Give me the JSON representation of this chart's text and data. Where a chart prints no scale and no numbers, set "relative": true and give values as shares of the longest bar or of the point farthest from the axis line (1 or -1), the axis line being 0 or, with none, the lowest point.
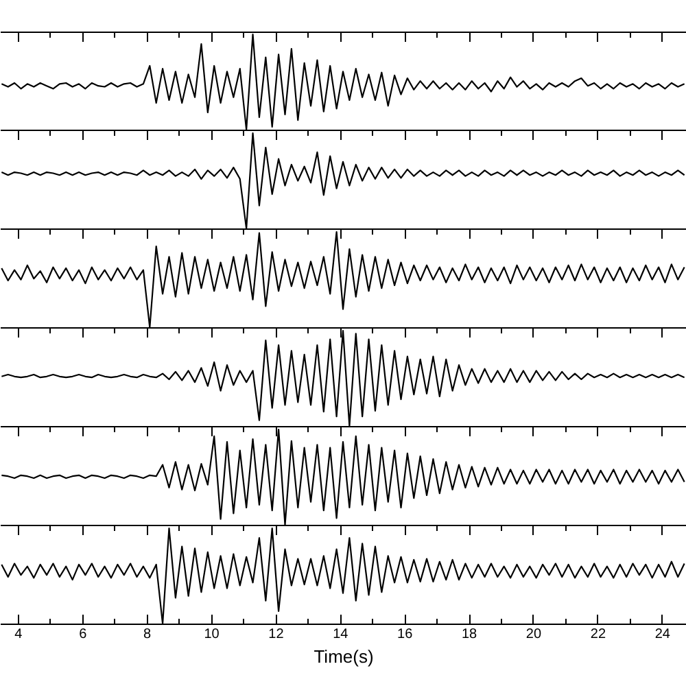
{
  "chart_data": [
    {
      "type": "line",
      "relative": true,
      "tick_labels": false,
      "color": "#000000",
      "xlim": [
        3.45,
        24.75
      ],
      "xticks": [
        4,
        {
          "value": 5,
          "label": null
        },
        6,
        {
          "value": 7,
          "label": null
        },
        8,
        {
          "value": 9,
          "label": null
        },
        10,
        {
          "value": 11,
          "label": null
        },
        12,
        {
          "value": 13,
          "label": null
        },
        14,
        {
          "value": 15,
          "label": null
        },
        16,
        {
          "value": 17,
          "label": null
        },
        18,
        {
          "value": 19,
          "label": null
        },
        20,
        {
          "value": 21,
          "label": null
        },
        22,
        {
          "value": 23,
          "label": null
        },
        24
      ],
      "x": [
        3.5,
        3.7,
        3.9,
        4.1,
        4.3,
        4.5,
        4.7,
        4.9,
        5.1,
        5.3,
        5.5,
        5.7,
        5.9,
        6.1,
        6.3,
        6.5,
        6.7,
        6.9,
        7.1,
        7.3,
        7.5,
        7.7,
        7.9,
        8.1,
        8.3,
        8.5,
        8.7,
        8.9,
        9.1,
        9.3,
        9.5,
        9.7,
        9.9,
        10.1,
        10.3,
        10.5,
        10.7,
        10.9,
        11.1,
        11.3,
        11.5,
        11.7,
        11.9,
        12.1,
        12.3,
        12.5,
        12.7,
        12.9,
        13.1,
        13.3,
        13.5,
        13.7,
        13.9,
        14.1,
        14.3,
        14.5,
        14.7,
        14.9,
        15.1,
        15.3,
        15.5,
        15.7,
        15.9,
        16.1,
        16.3,
        16.5,
        16.7,
        16.9,
        17.1,
        17.3,
        17.5,
        17.7,
        17.9,
        18.1,
        18.3,
        18.5,
        18.7,
        18.9,
        19.1,
        19.3,
        19.5,
        19.7,
        19.9,
        20.1,
        20.3,
        20.5,
        20.7,
        20.9,
        21.1,
        21.3,
        21.5,
        21.7,
        21.9,
        22.1,
        22.3,
        22.5,
        22.7,
        22.9,
        23.1,
        23.3,
        23.5,
        23.7,
        23.9,
        24.1,
        24.3,
        24.5,
        24.7
      ],
      "values": [
        0.48,
        0.45,
        0.49,
        0.43,
        0.48,
        0.45,
        0.49,
        0.46,
        0.43,
        0.48,
        0.49,
        0.45,
        0.48,
        0.43,
        0.49,
        0.46,
        0.45,
        0.49,
        0.45,
        0.48,
        0.49,
        0.45,
        0.48,
        0.67,
        0.28,
        0.64,
        0.31,
        0.61,
        0.28,
        0.58,
        0.34,
        0.9,
        0.18,
        0.67,
        0.28,
        0.61,
        0.34,
        0.64,
        0,
        1,
        0.13,
        0.76,
        0.03,
        0.79,
        0.16,
        0.85,
        0.1,
        0.7,
        0.25,
        0.73,
        0.19,
        0.67,
        0.22,
        0.61,
        0.31,
        0.64,
        0.34,
        0.58,
        0.31,
        0.6,
        0.25,
        0.57,
        0.37,
        0.54,
        0.42,
        0.51,
        0.43,
        0.51,
        0.43,
        0.49,
        0.42,
        0.49,
        0.42,
        0.51,
        0.43,
        0.49,
        0.4,
        0.51,
        0.43,
        0.55,
        0.45,
        0.51,
        0.43,
        0.48,
        0.42,
        0.49,
        0.45,
        0.49,
        0.45,
        0.51,
        0.54,
        0.46,
        0.49,
        0.43,
        0.48,
        0.43,
        0.49,
        0.45,
        0.48,
        0.43,
        0.49,
        0.45,
        0.48,
        0.43,
        0.49,
        0.45,
        0.48
      ]
    },
    {
      "type": "line",
      "relative": true,
      "tick_labels": false,
      "color": "#000000",
      "xlim": [
        3.45,
        24.75
      ],
      "xticks": [
        4,
        {
          "value": 5,
          "label": null
        },
        6,
        {
          "value": 7,
          "label": null
        },
        8,
        {
          "value": 9,
          "label": null
        },
        10,
        {
          "value": 11,
          "label": null
        },
        12,
        {
          "value": 13,
          "label": null
        },
        14,
        {
          "value": 15,
          "label": null
        },
        16,
        {
          "value": 17,
          "label": null
        },
        18,
        {
          "value": 19,
          "label": null
        },
        20,
        {
          "value": 21,
          "label": null
        },
        22,
        {
          "value": 23,
          "label": null
        },
        24
      ],
      "x": [
        3.5,
        3.7,
        3.9,
        4.1,
        4.3,
        4.5,
        4.7,
        4.9,
        5.1,
        5.3,
        5.5,
        5.7,
        5.9,
        6.1,
        6.3,
        6.5,
        6.7,
        6.9,
        7.1,
        7.3,
        7.5,
        7.7,
        7.9,
        8.1,
        8.3,
        8.5,
        8.7,
        8.9,
        9.1,
        9.3,
        9.5,
        9.7,
        9.9,
        10.1,
        10.3,
        10.5,
        10.7,
        10.9,
        11.1,
        11.3,
        11.5,
        11.7,
        11.9,
        12.1,
        12.3,
        12.5,
        12.7,
        12.9,
        13.1,
        13.3,
        13.5,
        13.7,
        13.9,
        14.1,
        14.3,
        14.5,
        14.7,
        14.9,
        15.1,
        15.3,
        15.5,
        15.7,
        15.9,
        16.1,
        16.3,
        16.5,
        16.7,
        16.9,
        17.1,
        17.3,
        17.5,
        17.7,
        17.9,
        18.1,
        18.3,
        18.5,
        18.7,
        18.9,
        19.1,
        19.3,
        19.5,
        19.7,
        19.9,
        20.1,
        20.3,
        20.5,
        20.7,
        20.9,
        21.1,
        21.3,
        21.5,
        21.7,
        21.9,
        22.1,
        22.3,
        22.5,
        22.7,
        22.9,
        23.1,
        23.3,
        23.5,
        23.7,
        23.9,
        24.1,
        24.3,
        24.5,
        24.7
      ],
      "values": [
        0.59,
        0.56,
        0.59,
        0.58,
        0.56,
        0.59,
        0.56,
        0.59,
        0.58,
        0.56,
        0.59,
        0.56,
        0.59,
        0.56,
        0.58,
        0.59,
        0.56,
        0.59,
        0.56,
        0.59,
        0.58,
        0.56,
        0.61,
        0.56,
        0.59,
        0.56,
        0.61,
        0.55,
        0.59,
        0.55,
        0.62,
        0.52,
        0.61,
        0.55,
        0.62,
        0.53,
        0.64,
        0.52,
        0,
        1,
        0.24,
        0.85,
        0.36,
        0.73,
        0.45,
        0.67,
        0.5,
        0.65,
        0.48,
        0.8,
        0.35,
        0.76,
        0.42,
        0.7,
        0.45,
        0.67,
        0.5,
        0.64,
        0.52,
        0.64,
        0.53,
        0.62,
        0.53,
        0.62,
        0.55,
        0.61,
        0.55,
        0.59,
        0.55,
        0.61,
        0.56,
        0.61,
        0.55,
        0.59,
        0.55,
        0.61,
        0.56,
        0.59,
        0.55,
        0.61,
        0.56,
        0.61,
        0.56,
        0.59,
        0.55,
        0.59,
        0.56,
        0.61,
        0.56,
        0.59,
        0.55,
        0.61,
        0.56,
        0.59,
        0.56,
        0.61,
        0.55,
        0.59,
        0.56,
        0.61,
        0.56,
        0.59,
        0.55,
        0.59,
        0.56,
        0.61,
        0.56
      ]
    },
    {
      "type": "line",
      "relative": true,
      "tick_labels": false,
      "color": "#000000",
      "xlim": [
        3.45,
        24.75
      ],
      "xticks": [
        4,
        {
          "value": 5,
          "label": null
        },
        6,
        {
          "value": 7,
          "label": null
        },
        8,
        {
          "value": 9,
          "label": null
        },
        10,
        {
          "value": 11,
          "label": null
        },
        12,
        {
          "value": 13,
          "label": null
        },
        14,
        {
          "value": 15,
          "label": null
        },
        16,
        {
          "value": 17,
          "label": null
        },
        18,
        {
          "value": 19,
          "label": null
        },
        20,
        {
          "value": 21,
          "label": null
        },
        22,
        {
          "value": 23,
          "label": null
        },
        24
      ],
      "x": [
        3.5,
        3.7,
        3.9,
        4.1,
        4.3,
        4.5,
        4.7,
        4.9,
        5.1,
        5.3,
        5.5,
        5.7,
        5.9,
        6.1,
        6.3,
        6.5,
        6.7,
        6.9,
        7.1,
        7.3,
        7.5,
        7.7,
        7.9,
        8.1,
        8.3,
        8.5,
        8.7,
        8.9,
        9.1,
        9.3,
        9.5,
        9.7,
        9.9,
        10.1,
        10.3,
        10.5,
        10.7,
        10.9,
        11.1,
        11.3,
        11.5,
        11.7,
        11.9,
        12.1,
        12.3,
        12.5,
        12.7,
        12.9,
        13.1,
        13.3,
        13.5,
        13.7,
        13.9,
        14.1,
        14.3,
        14.5,
        14.7,
        14.9,
        15.1,
        15.3,
        15.5,
        15.7,
        15.9,
        16.1,
        16.3,
        16.5,
        16.7,
        16.9,
        17.1,
        17.3,
        17.5,
        17.7,
        17.9,
        18.1,
        18.3,
        18.5,
        18.7,
        18.9,
        19.1,
        19.3,
        19.5,
        19.7,
        19.9,
        20.1,
        20.3,
        20.5,
        20.7,
        20.9,
        21.1,
        21.3,
        21.5,
        21.7,
        21.9,
        22.1,
        22.3,
        22.5,
        22.7,
        22.9,
        23.1,
        23.3,
        23.5,
        23.7,
        23.9,
        24.1,
        24.3,
        24.5,
        24.7
      ],
      "values": [
        0.62,
        0.49,
        0.6,
        0.5,
        0.65,
        0.51,
        0.59,
        0.47,
        0.63,
        0.51,
        0.62,
        0.49,
        0.6,
        0.46,
        0.63,
        0.5,
        0.6,
        0.49,
        0.62,
        0.51,
        0.63,
        0.5,
        0.6,
        0,
        0.85,
        0.35,
        0.74,
        0.32,
        0.78,
        0.35,
        0.74,
        0.41,
        0.71,
        0.38,
        0.68,
        0.41,
        0.74,
        0.38,
        0.76,
        0.29,
        0.99,
        0.22,
        0.79,
        0.38,
        0.71,
        0.43,
        0.68,
        0.41,
        0.69,
        0.44,
        0.74,
        0.35,
        1,
        0.19,
        0.82,
        0.32,
        0.76,
        0.38,
        0.74,
        0.41,
        0.71,
        0.44,
        0.68,
        0.46,
        0.65,
        0.49,
        0.65,
        0.5,
        0.63,
        0.47,
        0.62,
        0.49,
        0.66,
        0.5,
        0.63,
        0.47,
        0.62,
        0.49,
        0.63,
        0.46,
        0.65,
        0.5,
        0.63,
        0.49,
        0.62,
        0.47,
        0.63,
        0.5,
        0.65,
        0.49,
        0.66,
        0.5,
        0.63,
        0.47,
        0.62,
        0.49,
        0.63,
        0.47,
        0.62,
        0.49,
        0.65,
        0.5,
        0.63,
        0.47,
        0.66,
        0.5,
        0.63
      ]
    },
    {
      "type": "line",
      "relative": true,
      "tick_labels": false,
      "color": "#000000",
      "xlim": [
        3.45,
        24.75
      ],
      "xticks": [
        4,
        {
          "value": 5,
          "label": null
        },
        6,
        {
          "value": 7,
          "label": null
        },
        8,
        {
          "value": 9,
          "label": null
        },
        10,
        {
          "value": 11,
          "label": null
        },
        12,
        {
          "value": 13,
          "label": null
        },
        14,
        {
          "value": 15,
          "label": null
        },
        16,
        {
          "value": 17,
          "label": null
        },
        18,
        {
          "value": 19,
          "label": null
        },
        20,
        {
          "value": 21,
          "label": null
        },
        22,
        {
          "value": 23,
          "label": null
        },
        24
      ],
      "x": [
        3.5,
        3.7,
        3.9,
        4.1,
        4.3,
        4.5,
        4.7,
        4.9,
        5.1,
        5.3,
        5.5,
        5.7,
        5.9,
        6.1,
        6.3,
        6.5,
        6.7,
        6.9,
        7.1,
        7.3,
        7.5,
        7.7,
        7.9,
        8.1,
        8.3,
        8.5,
        8.7,
        8.9,
        9.1,
        9.3,
        9.5,
        9.7,
        9.9,
        10.1,
        10.3,
        10.5,
        10.7,
        10.9,
        11.1,
        11.3,
        11.5,
        11.7,
        11.9,
        12.1,
        12.3,
        12.5,
        12.7,
        12.9,
        13.1,
        13.3,
        13.5,
        13.7,
        13.9,
        14.1,
        14.3,
        14.5,
        14.7,
        14.9,
        15.1,
        15.3,
        15.5,
        15.7,
        15.9,
        16.1,
        16.3,
        16.5,
        16.7,
        16.9,
        17.1,
        17.3,
        17.5,
        17.7,
        17.9,
        18.1,
        18.3,
        18.5,
        18.7,
        18.9,
        19.1,
        19.3,
        19.5,
        19.7,
        19.9,
        20.1,
        20.3,
        20.5,
        20.7,
        20.9,
        21.1,
        21.3,
        21.5,
        21.7,
        21.9,
        22.1,
        22.3,
        22.5,
        22.7,
        22.9,
        23.1,
        23.3,
        23.5,
        23.7,
        23.9,
        24.1,
        24.3,
        24.5,
        24.7
      ],
      "values": [
        0.52,
        0.54,
        0.52,
        0.51,
        0.52,
        0.54,
        0.51,
        0.52,
        0.54,
        0.52,
        0.51,
        0.52,
        0.54,
        0.52,
        0.51,
        0.54,
        0.52,
        0.51,
        0.52,
        0.54,
        0.52,
        0.51,
        0.54,
        0.52,
        0.51,
        0.55,
        0.49,
        0.57,
        0.48,
        0.58,
        0.46,
        0.61,
        0.42,
        0.67,
        0.37,
        0.64,
        0.43,
        0.58,
        0.46,
        0.58,
        0.06,
        0.9,
        0.19,
        0.85,
        0.22,
        0.79,
        0.25,
        0.75,
        0.22,
        0.85,
        0.15,
        0.91,
        0.1,
        1,
        0,
        0.97,
        0.1,
        0.91,
        0.16,
        0.85,
        0.22,
        0.79,
        0.28,
        0.73,
        0.33,
        0.7,
        0.34,
        0.73,
        0.31,
        0.7,
        0.37,
        0.64,
        0.43,
        0.6,
        0.45,
        0.6,
        0.46,
        0.58,
        0.46,
        0.6,
        0.46,
        0.58,
        0.46,
        0.58,
        0.48,
        0.57,
        0.48,
        0.57,
        0.49,
        0.55,
        0.49,
        0.55,
        0.51,
        0.54,
        0.51,
        0.55,
        0.51,
        0.54,
        0.51,
        0.54,
        0.51,
        0.54,
        0.51,
        0.54,
        0.51,
        0.54,
        0.51
      ]
    },
    {
      "type": "line",
      "relative": true,
      "tick_labels": false,
      "color": "#000000",
      "xlim": [
        3.45,
        24.75
      ],
      "xticks": [
        4,
        {
          "value": 5,
          "label": null
        },
        6,
        {
          "value": 7,
          "label": null
        },
        8,
        {
          "value": 9,
          "label": null
        },
        10,
        {
          "value": 11,
          "label": null
        },
        12,
        {
          "value": 13,
          "label": null
        },
        14,
        {
          "value": 15,
          "label": null
        },
        16,
        {
          "value": 17,
          "label": null
        },
        18,
        {
          "value": 19,
          "label": null
        },
        20,
        {
          "value": 21,
          "label": null
        },
        22,
        {
          "value": 23,
          "label": null
        },
        24
      ],
      "x": [
        3.5,
        3.7,
        3.9,
        4.1,
        4.3,
        4.5,
        4.7,
        4.9,
        5.1,
        5.3,
        5.5,
        5.7,
        5.9,
        6.1,
        6.3,
        6.5,
        6.7,
        6.9,
        7.1,
        7.3,
        7.5,
        7.7,
        7.9,
        8.1,
        8.3,
        8.5,
        8.7,
        8.9,
        9.1,
        9.3,
        9.5,
        9.7,
        9.9,
        10.1,
        10.3,
        10.5,
        10.7,
        10.9,
        11.1,
        11.3,
        11.5,
        11.7,
        11.9,
        12.1,
        12.3,
        12.5,
        12.7,
        12.9,
        13.1,
        13.3,
        13.5,
        13.7,
        13.9,
        14.1,
        14.3,
        14.5,
        14.7,
        14.9,
        15.1,
        15.3,
        15.5,
        15.7,
        15.9,
        16.1,
        16.3,
        16.5,
        16.7,
        16.9,
        17.1,
        17.3,
        17.5,
        17.7,
        17.9,
        18.1,
        18.3,
        18.5,
        18.7,
        18.9,
        19.1,
        19.3,
        19.5,
        19.7,
        19.9,
        20.1,
        20.3,
        20.5,
        20.7,
        20.9,
        21.1,
        21.3,
        21.5,
        21.7,
        21.9,
        22.1,
        22.3,
        22.5,
        22.7,
        22.9,
        23.1,
        23.3,
        23.5,
        23.7,
        23.9,
        24.1,
        24.3,
        24.5,
        24.7
      ],
      "values": [
        0.52,
        0.51,
        0.49,
        0.52,
        0.51,
        0.49,
        0.52,
        0.49,
        0.51,
        0.52,
        0.49,
        0.51,
        0.52,
        0.49,
        0.52,
        0.51,
        0.49,
        0.52,
        0.51,
        0.49,
        0.52,
        0.51,
        0.49,
        0.52,
        0.51,
        0.63,
        0.39,
        0.66,
        0.37,
        0.63,
        0.36,
        0.64,
        0.42,
        0.93,
        0.06,
        0.87,
        0.12,
        0.78,
        0.18,
        0.9,
        0.21,
        0.84,
        0.15,
        1,
        0,
        0.88,
        0.18,
        0.81,
        0.24,
        0.84,
        0.15,
        0.81,
        0.07,
        0.87,
        0.18,
        0.93,
        0.21,
        0.84,
        0.15,
        0.81,
        0.24,
        0.78,
        0.18,
        0.75,
        0.28,
        0.72,
        0.31,
        0.69,
        0.33,
        0.66,
        0.37,
        0.63,
        0.39,
        0.61,
        0.4,
        0.6,
        0.42,
        0.6,
        0.43,
        0.58,
        0.43,
        0.57,
        0.43,
        0.58,
        0.45,
        0.58,
        0.43,
        0.57,
        0.43,
        0.58,
        0.45,
        0.58,
        0.43,
        0.57,
        0.45,
        0.58,
        0.43,
        0.57,
        0.45,
        0.58,
        0.45,
        0.57,
        0.43,
        0.57,
        0.45,
        0.58,
        0.45
      ]
    },
    {
      "type": "line",
      "relative": true,
      "tick_labels": "x",
      "color": "#000000",
      "xlim": [
        3.45,
        24.75
      ],
      "xlabel": "Time(s)",
      "xticks": [
        4,
        {
          "value": 5,
          "label": null
        },
        6,
        {
          "value": 7,
          "label": null
        },
        8,
        {
          "value": 9,
          "label": null
        },
        10,
        {
          "value": 11,
          "label": null
        },
        12,
        {
          "value": 13,
          "label": null
        },
        14,
        {
          "value": 15,
          "label": null
        },
        16,
        {
          "value": 17,
          "label": null
        },
        18,
        {
          "value": 19,
          "label": null
        },
        20,
        {
          "value": 21,
          "label": null
        },
        22,
        {
          "value": 23,
          "label": null
        },
        24
      ],
      "x": [
        3.5,
        3.7,
        3.9,
        4.1,
        4.3,
        4.5,
        4.7,
        4.9,
        5.1,
        5.3,
        5.5,
        5.7,
        5.9,
        6.1,
        6.3,
        6.5,
        6.7,
        6.9,
        7.1,
        7.3,
        7.5,
        7.7,
        7.9,
        8.1,
        8.3,
        8.5,
        8.7,
        8.9,
        9.1,
        9.3,
        9.5,
        9.7,
        9.9,
        10.1,
        10.3,
        10.5,
        10.7,
        10.9,
        11.1,
        11.3,
        11.5,
        11.7,
        11.9,
        12.1,
        12.3,
        12.5,
        12.7,
        12.9,
        13.1,
        13.3,
        13.5,
        13.7,
        13.9,
        14.1,
        14.3,
        14.5,
        14.7,
        14.9,
        15.1,
        15.3,
        15.5,
        15.7,
        15.9,
        16.1,
        16.3,
        16.5,
        16.7,
        16.9,
        17.1,
        17.3,
        17.5,
        17.7,
        17.9,
        18.1,
        18.3,
        18.5,
        18.7,
        18.9,
        19.1,
        19.3,
        19.5,
        19.7,
        19.9,
        20.1,
        20.3,
        20.5,
        20.7,
        20.9,
        21.1,
        21.3,
        21.5,
        21.7,
        21.9,
        22.1,
        22.3,
        22.5,
        22.7,
        22.9,
        23.1,
        23.3,
        23.5,
        23.7,
        23.9,
        24.1,
        24.3,
        24.5,
        24.7
      ],
      "values": [
        0.62,
        0.49,
        0.63,
        0.51,
        0.6,
        0.48,
        0.62,
        0.51,
        0.63,
        0.49,
        0.6,
        0.46,
        0.62,
        0.51,
        0.63,
        0.49,
        0.6,
        0.48,
        0.62,
        0.51,
        0.63,
        0.49,
        0.6,
        0.48,
        0.62,
        0,
        1,
        0.27,
        0.81,
        0.29,
        0.79,
        0.33,
        0.75,
        0.37,
        0.71,
        0.37,
        0.73,
        0.4,
        0.7,
        0.43,
        0.9,
        0.24,
        1,
        0.13,
        0.78,
        0.4,
        0.68,
        0.41,
        0.68,
        0.4,
        0.71,
        0.37,
        0.78,
        0.32,
        0.9,
        0.24,
        0.84,
        0.3,
        0.81,
        0.33,
        0.71,
        0.43,
        0.7,
        0.43,
        0.67,
        0.44,
        0.68,
        0.44,
        0.65,
        0.46,
        0.67,
        0.46,
        0.63,
        0.48,
        0.62,
        0.49,
        0.63,
        0.49,
        0.6,
        0.48,
        0.62,
        0.49,
        0.6,
        0.48,
        0.62,
        0.51,
        0.63,
        0.49,
        0.62,
        0.48,
        0.6,
        0.49,
        0.63,
        0.49,
        0.6,
        0.48,
        0.62,
        0.49,
        0.63,
        0.51,
        0.62,
        0.48,
        0.62,
        0.49,
        0.65,
        0.49,
        0.63
      ]
    }
  ]
}
